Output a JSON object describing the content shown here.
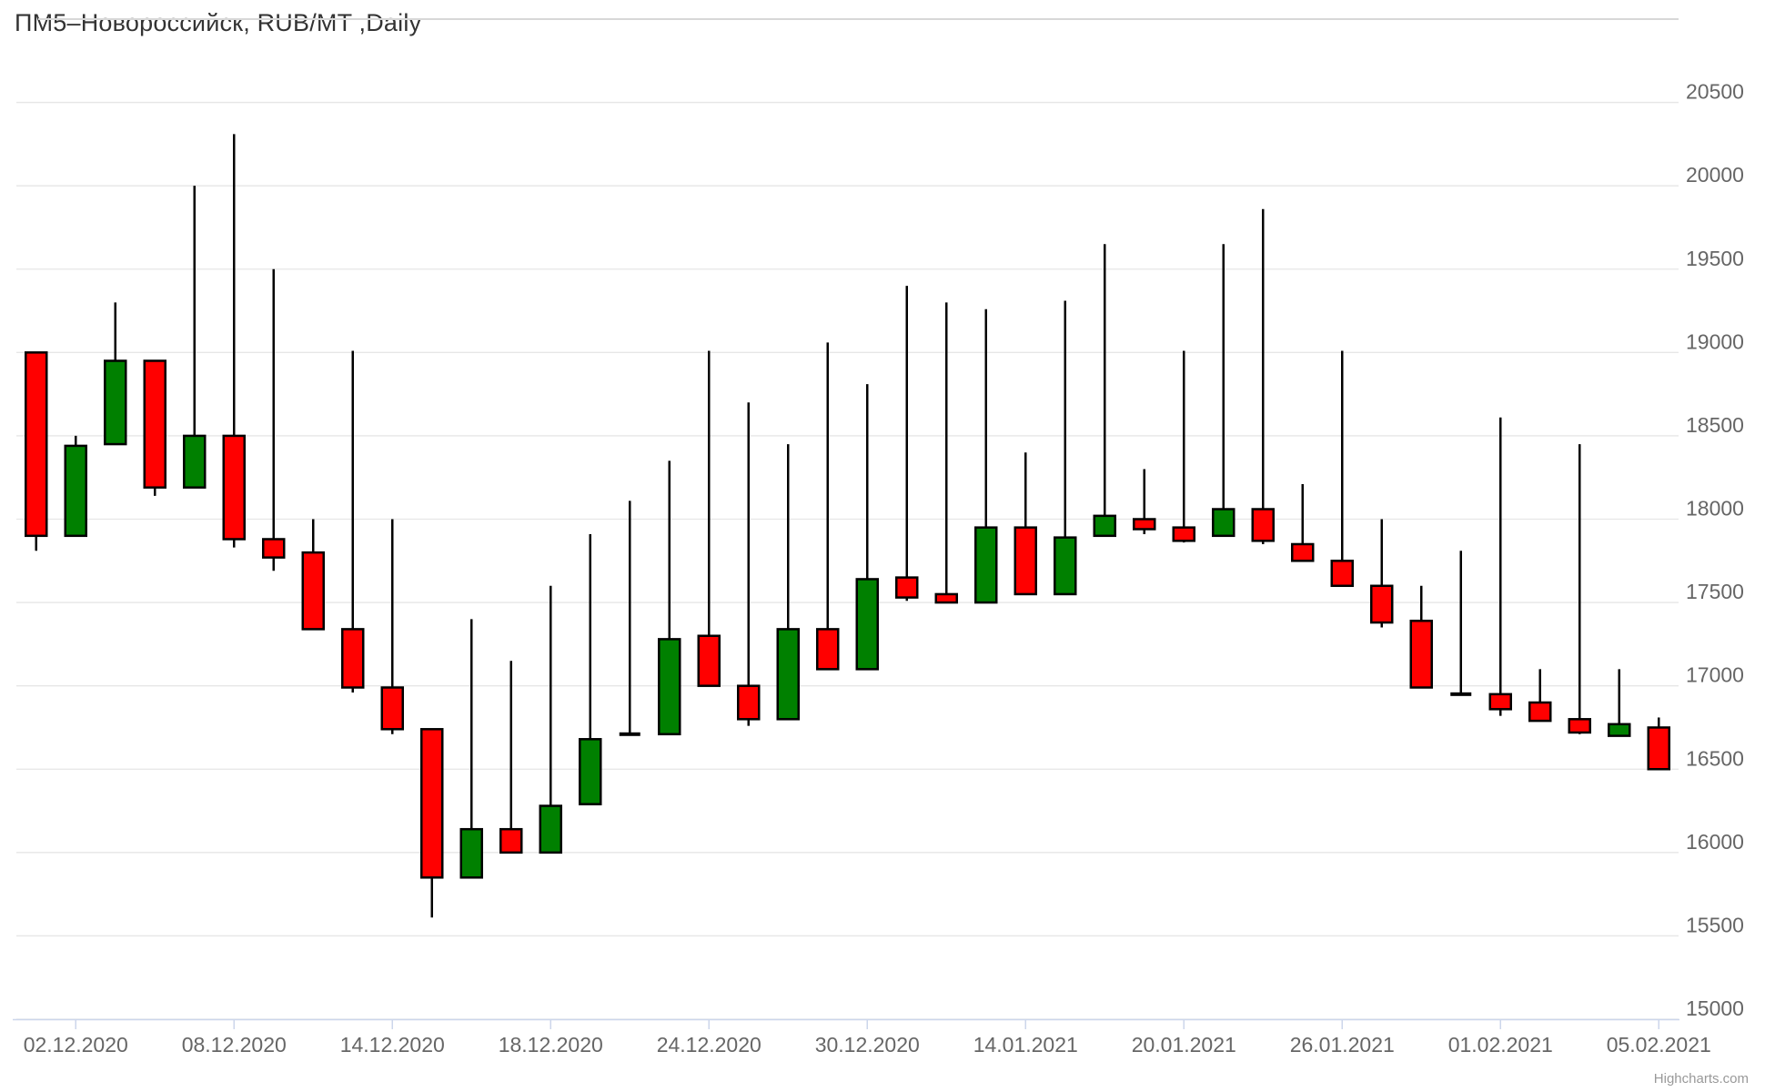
{
  "title": "ПМ5–Новороссийск, RUB/MT ,Daily",
  "credits_label": "Highcharts.com",
  "chart_data": {
    "type": "candlestick",
    "title": "ПМ5–Новороссийск, RUB/MT ,Daily",
    "xlabel": "",
    "ylabel": "",
    "ylim": [
      15000,
      21000
    ],
    "y_tick_step": 500,
    "y_tick_labels": [
      15000,
      15500,
      16000,
      16500,
      17000,
      17500,
      18000,
      18500,
      19000,
      19500,
      20000,
      20500
    ],
    "grid": "on",
    "legend_position": "none",
    "x_tick_indices": [
      1,
      5,
      9,
      13,
      17,
      21,
      25,
      29,
      33,
      37,
      41
    ],
    "x_tick_labels": [
      "02.12.2020",
      "08.12.2020",
      "14.12.2020",
      "18.12.2020",
      "24.12.2020",
      "30.12.2020",
      "14.01.2021",
      "20.01.2021",
      "26.01.2021",
      "01.02.2021",
      "05.02.2021"
    ],
    "colors": {
      "up": "#008000",
      "down": "#ff0000",
      "flat": "#000000",
      "outline": "#000000",
      "grid": "#e6e6e6",
      "top_border": "#d8d8d8",
      "axis_line": "#ccd6eb",
      "labels": "#666666",
      "title": "#333333",
      "credits": "#999999",
      "background": "#ffffff"
    },
    "candles": [
      {
        "date": "01.12.2020",
        "open": 19000,
        "high": 19000,
        "low": 17810,
        "close": 17900,
        "direction": "down"
      },
      {
        "date": "02.12.2020",
        "open": 17900,
        "high": 18500,
        "low": 17900,
        "close": 18440,
        "direction": "up"
      },
      {
        "date": "03.12.2020",
        "open": 18450,
        "high": 19300,
        "low": 18450,
        "close": 18950,
        "direction": "up"
      },
      {
        "date": "04.12.2020",
        "open": 18950,
        "high": 18950,
        "low": 18140,
        "close": 18190,
        "direction": "down"
      },
      {
        "date": "07.12.2020",
        "open": 18190,
        "high": 20000,
        "low": 18190,
        "close": 18500,
        "direction": "up"
      },
      {
        "date": "08.12.2020",
        "open": 18500,
        "high": 20310,
        "low": 17830,
        "close": 17880,
        "direction": "down"
      },
      {
        "date": "09.12.2020",
        "open": 17880,
        "high": 19500,
        "low": 17690,
        "close": 17770,
        "direction": "down"
      },
      {
        "date": "10.12.2020",
        "open": 17800,
        "high": 18000,
        "low": 17340,
        "close": 17340,
        "direction": "down"
      },
      {
        "date": "11.12.2020",
        "open": 17340,
        "high": 19010,
        "low": 16960,
        "close": 16990,
        "direction": "down"
      },
      {
        "date": "14.12.2020",
        "open": 16990,
        "high": 18000,
        "low": 16710,
        "close": 16740,
        "direction": "down"
      },
      {
        "date": "15.12.2020",
        "open": 16740,
        "high": 16740,
        "low": 15610,
        "close": 15850,
        "direction": "down"
      },
      {
        "date": "16.12.2020",
        "open": 15850,
        "high": 17400,
        "low": 15850,
        "close": 16140,
        "direction": "up"
      },
      {
        "date": "17.12.2020",
        "open": 16140,
        "high": 17150,
        "low": 16000,
        "close": 16000,
        "direction": "down"
      },
      {
        "date": "18.12.2020",
        "open": 16000,
        "high": 17600,
        "low": 16000,
        "close": 16280,
        "direction": "up"
      },
      {
        "date": "21.12.2020",
        "open": 16290,
        "high": 17910,
        "low": 16290,
        "close": 16680,
        "direction": "up"
      },
      {
        "date": "22.12.2020",
        "open": 16710,
        "high": 18110,
        "low": 16710,
        "close": 16710,
        "direction": "flat"
      },
      {
        "date": "23.12.2020",
        "open": 16710,
        "high": 18350,
        "low": 16710,
        "close": 17280,
        "direction": "up"
      },
      {
        "date": "24.12.2020",
        "open": 17300,
        "high": 19010,
        "low": 17000,
        "close": 17000,
        "direction": "down"
      },
      {
        "date": "25.12.2020",
        "open": 17000,
        "high": 18700,
        "low": 16760,
        "close": 16800,
        "direction": "down"
      },
      {
        "date": "28.12.2020",
        "open": 16800,
        "high": 18450,
        "low": 16800,
        "close": 17340,
        "direction": "up"
      },
      {
        "date": "29.12.2020",
        "open": 17340,
        "high": 19060,
        "low": 17100,
        "close": 17100,
        "direction": "down"
      },
      {
        "date": "30.12.2020",
        "open": 17100,
        "high": 18810,
        "low": 17100,
        "close": 17640,
        "direction": "up"
      },
      {
        "date": "11.01.2021",
        "open": 17650,
        "high": 19400,
        "low": 17510,
        "close": 17530,
        "direction": "down"
      },
      {
        "date": "12.01.2021",
        "open": 17550,
        "high": 19300,
        "low": 17500,
        "close": 17500,
        "direction": "down"
      },
      {
        "date": "13.01.2021",
        "open": 17500,
        "high": 19260,
        "low": 17500,
        "close": 17950,
        "direction": "up"
      },
      {
        "date": "14.01.2021",
        "open": 17950,
        "high": 18400,
        "low": 17550,
        "close": 17550,
        "direction": "down"
      },
      {
        "date": "15.01.2021",
        "open": 17550,
        "high": 19310,
        "low": 17550,
        "close": 17890,
        "direction": "up"
      },
      {
        "date": "18.01.2021",
        "open": 17900,
        "high": 19650,
        "low": 17900,
        "close": 18020,
        "direction": "up"
      },
      {
        "date": "19.01.2021",
        "open": 18000,
        "high": 18300,
        "low": 17910,
        "close": 17940,
        "direction": "down"
      },
      {
        "date": "20.01.2021",
        "open": 17950,
        "high": 19010,
        "low": 17860,
        "close": 17870,
        "direction": "down"
      },
      {
        "date": "21.01.2021",
        "open": 17900,
        "high": 19650,
        "low": 17900,
        "close": 18060,
        "direction": "up"
      },
      {
        "date": "22.01.2021",
        "open": 18060,
        "high": 19860,
        "low": 17850,
        "close": 17870,
        "direction": "down"
      },
      {
        "date": "25.01.2021",
        "open": 17850,
        "high": 18210,
        "low": 17750,
        "close": 17750,
        "direction": "down"
      },
      {
        "date": "26.01.2021",
        "open": 17750,
        "high": 19010,
        "low": 17600,
        "close": 17600,
        "direction": "down"
      },
      {
        "date": "27.01.2021",
        "open": 17600,
        "high": 18000,
        "low": 17350,
        "close": 17380,
        "direction": "down"
      },
      {
        "date": "28.01.2021",
        "open": 17390,
        "high": 17600,
        "low": 16990,
        "close": 16990,
        "direction": "down"
      },
      {
        "date": "29.01.2021",
        "open": 16950,
        "high": 17810,
        "low": 16950,
        "close": 16950,
        "direction": "flat"
      },
      {
        "date": "01.02.2021",
        "open": 16950,
        "high": 18610,
        "low": 16820,
        "close": 16860,
        "direction": "down"
      },
      {
        "date": "02.02.2021",
        "open": 16900,
        "high": 17100,
        "low": 16790,
        "close": 16790,
        "direction": "down"
      },
      {
        "date": "03.02.2021",
        "open": 16800,
        "high": 18450,
        "low": 16710,
        "close": 16720,
        "direction": "down"
      },
      {
        "date": "04.02.2021",
        "open": 16700,
        "high": 17100,
        "low": 16700,
        "close": 16770,
        "direction": "up"
      },
      {
        "date": "05.02.2021",
        "open": 16750,
        "high": 16810,
        "low": 16500,
        "close": 16500,
        "direction": "down"
      }
    ]
  }
}
